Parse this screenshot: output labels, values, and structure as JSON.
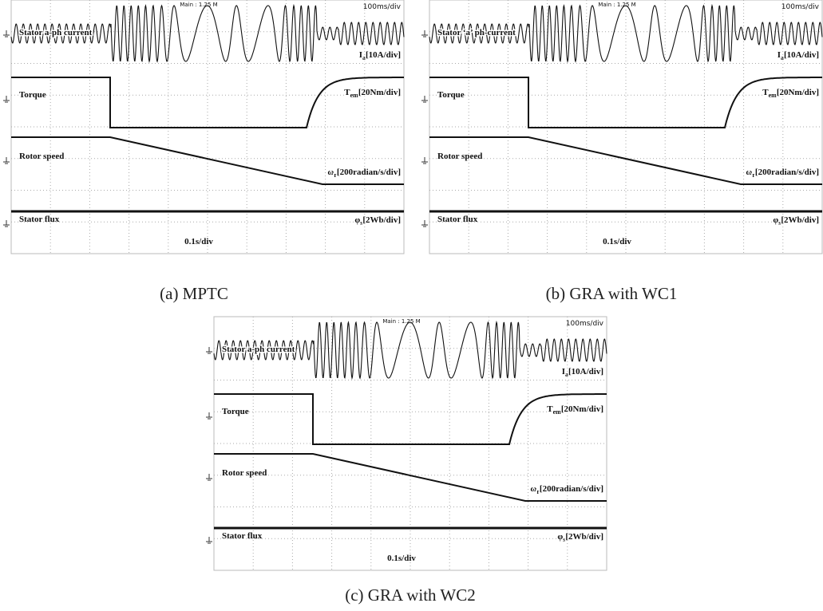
{
  "panels": [
    {
      "caption": "(a) MPTC",
      "scope_mode": "Main : 1.25 M",
      "timebase": "100ms/div",
      "time_scale": "0.1s/div",
      "traces": [
        {
          "name": "Stator a-ph current",
          "symbol": "I",
          "sub": "a",
          "scale": "[10A/div]"
        },
        {
          "name": "Torque",
          "symbol": "T",
          "sub": "em",
          "scale": "[20Nm/div]"
        },
        {
          "name": "Rotor speed",
          "symbol": "ω",
          "sub": "r",
          "scale": "[200radian/s/div]"
        },
        {
          "name": "Stator flux",
          "symbol": "φ",
          "sub": "s",
          "scale": "[2Wb/div]"
        }
      ]
    },
    {
      "caption": "(b) GRA with WC1",
      "scope_mode": "Main : 1.25 M",
      "timebase": "100ms/div",
      "time_scale": "0.1s/div",
      "traces": [
        {
          "name": "Stator ‘a’ ph-current",
          "symbol": "I",
          "sub": "a",
          "scale": "[10A/div]"
        },
        {
          "name": "Torque",
          "symbol": "T",
          "sub": "em",
          "scale": "[20Nm/div]"
        },
        {
          "name": "Rotor speed",
          "symbol": "ω",
          "sub": "r",
          "scale": "[200radian/s/div]"
        },
        {
          "name": "Stator flux",
          "symbol": "φ",
          "sub": "s",
          "scale": "[2Wb/div]"
        }
      ]
    },
    {
      "caption": "(c) GRA with WC2",
      "scope_mode": "Main : 1.25 M",
      "timebase": "100ms/div",
      "time_scale": "0.1s/div",
      "traces": [
        {
          "name": "Stator a-ph current",
          "symbol": "I",
          "sub": "a",
          "scale": "[10A/div]"
        },
        {
          "name": "Torque",
          "symbol": "T",
          "sub": "em",
          "scale": "[20Nm/div]"
        },
        {
          "name": "Rotor speed",
          "symbol": "ω",
          "sub": "r",
          "scale": "[200radian/s/div]"
        },
        {
          "name": "Stator flux",
          "symbol": "φ",
          "sub": "s",
          "scale": "[2Wb/div]"
        }
      ]
    }
  ]
}
